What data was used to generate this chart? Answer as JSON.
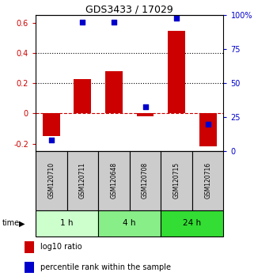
{
  "title": "GDS3433 / 17029",
  "samples": [
    "GSM120710",
    "GSM120711",
    "GSM120648",
    "GSM120708",
    "GSM120715",
    "GSM120716"
  ],
  "log10_ratio": [
    -0.15,
    0.23,
    0.28,
    -0.02,
    0.55,
    -0.22
  ],
  "percentile_rank": [
    8,
    95,
    95,
    33,
    98,
    20
  ],
  "time_groups": [
    {
      "label": "1 h",
      "samples": [
        "GSM120710",
        "GSM120711"
      ],
      "color": "#ccffcc"
    },
    {
      "label": "4 h",
      "samples": [
        "GSM120648",
        "GSM120708"
      ],
      "color": "#88ee88"
    },
    {
      "label": "24 h",
      "samples": [
        "GSM120715",
        "GSM120716"
      ],
      "color": "#33dd33"
    }
  ],
  "bar_color": "#cc0000",
  "dot_color": "#0000cc",
  "ylim_left": [
    -0.25,
    0.65
  ],
  "ylim_right": [
    0,
    100
  ],
  "yticks_left": [
    -0.2,
    0.0,
    0.2,
    0.4,
    0.6
  ],
  "yticks_right": [
    0,
    25,
    50,
    75,
    100
  ],
  "ytick_labels_left": [
    "-0.2",
    "0",
    "0.2",
    "0.4",
    "0.6"
  ],
  "ytick_labels_right": [
    "0",
    "25",
    "50",
    "75",
    "100%"
  ],
  "hlines": [
    0.2,
    0.4
  ],
  "zero_line": 0.0,
  "bar_width": 0.55,
  "sample_box_color": "#cccccc",
  "sample_box_edge": "#000000",
  "left_color": "#cc0000",
  "right_color": "#0000cc"
}
